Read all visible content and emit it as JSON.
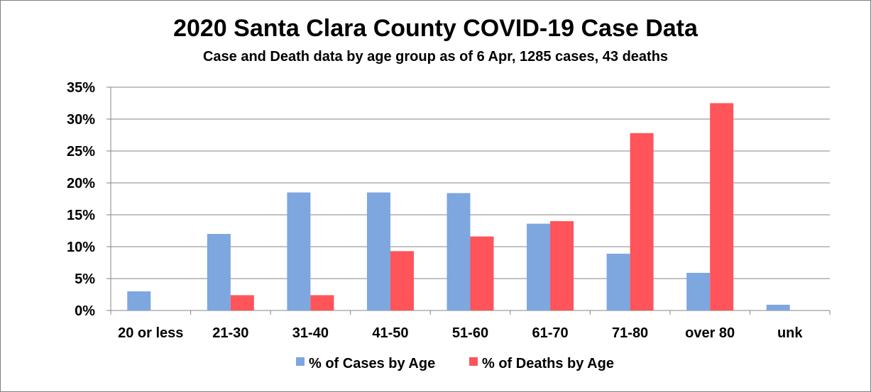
{
  "chart_data": {
    "type": "bar",
    "title": "2020 Santa Clara County COVID-19 Case Data",
    "subtitle": "Case and Death data by age group as of 6 Apr, 1285 cases, 43 deaths",
    "categories": [
      "20 or less",
      "21-30",
      "31-40",
      "41-50",
      "51-60",
      "61-70",
      "71-80",
      "over 80",
      "unk"
    ],
    "series": [
      {
        "name": "% of Cases by Age",
        "color": "#7ea6df",
        "values": [
          3.0,
          12.0,
          18.5,
          18.5,
          18.4,
          13.6,
          8.9,
          5.9,
          0.9
        ]
      },
      {
        "name": "% of Deaths by Age",
        "color": "#ff5459",
        "values": [
          0.0,
          2.4,
          2.4,
          9.3,
          11.6,
          14.0,
          27.8,
          32.5,
          0.0
        ]
      }
    ],
    "y_ticks": [
      "0%",
      "5%",
      "10%",
      "15%",
      "20%",
      "25%",
      "30%",
      "35%"
    ],
    "ylim": [
      0,
      35
    ],
    "grid": true,
    "legend_position": "bottom"
  }
}
